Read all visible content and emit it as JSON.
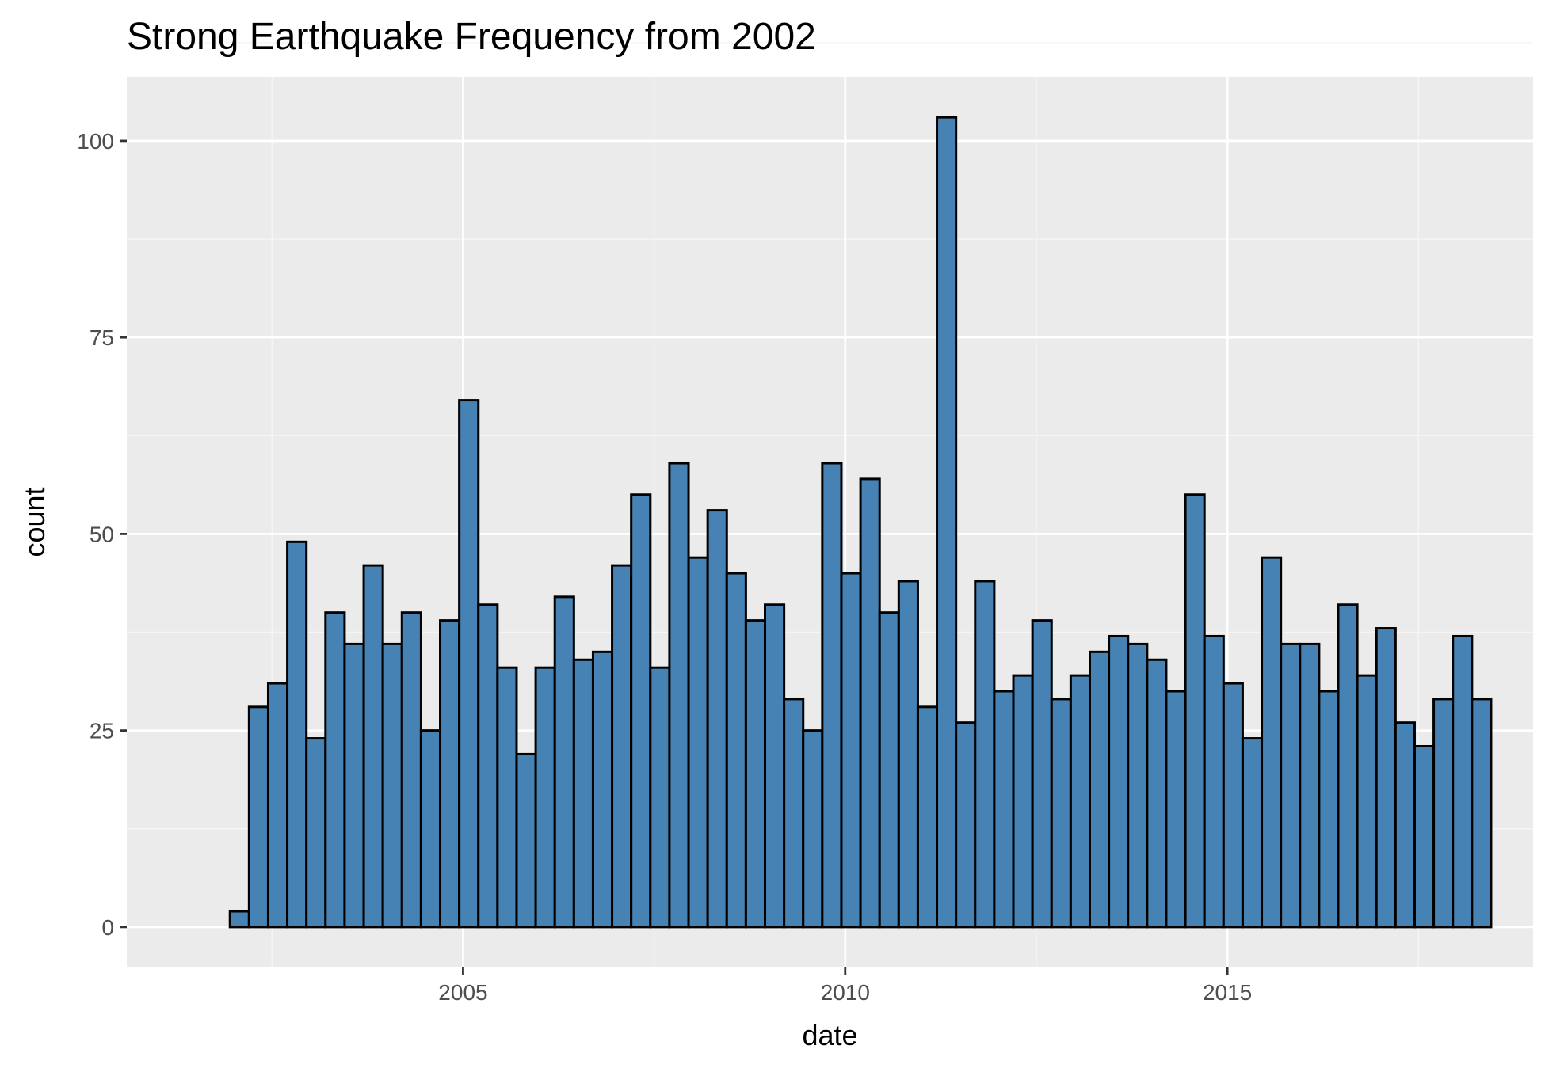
{
  "chart_data": {
    "type": "bar",
    "title": "Strong Earthquake Frequency from 2002",
    "xlabel": "date",
    "ylabel": "count",
    "x_tick_labels": [
      "2005",
      "2010",
      "2015"
    ],
    "x_tick_values": [
      2005,
      2010,
      2015
    ],
    "y_tick_labels": [
      "0",
      "25",
      "50",
      "75",
      "100"
    ],
    "y_tick_values": [
      0,
      25,
      50,
      75,
      100
    ],
    "xlim": [
      2000.6,
      2019.0
    ],
    "ylim": [
      -5.15,
      108.15
    ],
    "grid": true,
    "legend": "none",
    "bin_start": 2001.95,
    "bin_width": 0.25,
    "values": [
      2,
      28,
      31,
      49,
      24,
      40,
      36,
      46,
      36,
      40,
      25,
      39,
      67,
      41,
      33,
      22,
      33,
      42,
      34,
      35,
      46,
      55,
      33,
      59,
      47,
      53,
      45,
      39,
      41,
      29,
      25,
      59,
      45,
      57,
      40,
      44,
      28,
      103,
      26,
      44,
      30,
      32,
      39,
      29,
      32,
      35,
      37,
      36,
      34,
      30,
      55,
      37,
      31,
      24,
      47,
      36,
      36,
      30,
      41,
      32,
      38,
      26,
      23,
      29,
      37,
      29
    ],
    "colors": {
      "bar_fill": "#4682b4",
      "bar_outline": "#000000",
      "panel_background": "#ebebeb",
      "grid_major": "#ffffff",
      "grid_minor": "#f5f5f5"
    }
  }
}
